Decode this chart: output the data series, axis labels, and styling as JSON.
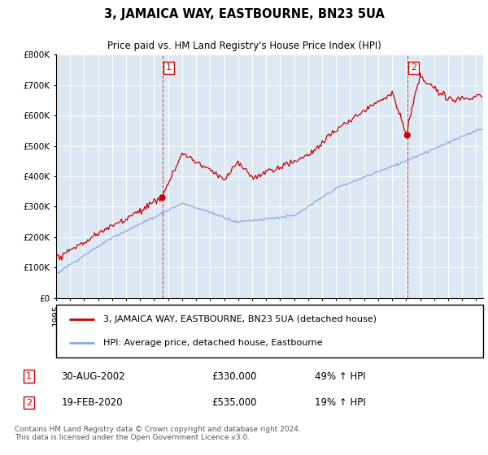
{
  "title": "3, JAMAICA WAY, EASTBOURNE, BN23 5UA",
  "subtitle": "Price paid vs. HM Land Registry's House Price Index (HPI)",
  "bg_color": "#dce9f5",
  "legend_line1": "3, JAMAICA WAY, EASTBOURNE, BN23 5UA (detached house)",
  "legend_line2": "HPI: Average price, detached house, Eastbourne",
  "sale1_date": "30-AUG-2002",
  "sale1_price": 330000,
  "sale1_pct": "49%",
  "sale2_date": "19-FEB-2020",
  "sale2_price": 535000,
  "sale2_pct": "19%",
  "footer": "Contains HM Land Registry data © Crown copyright and database right 2024.\nThis data is licensed under the Open Government Licence v3.0.",
  "red_color": "#cc0000",
  "blue_color": "#88aadd",
  "ylim": [
    0,
    800000
  ],
  "yticks": [
    0,
    100000,
    200000,
    300000,
    400000,
    500000,
    600000,
    700000,
    800000
  ],
  "xlim_start": 1995.0,
  "xlim_end": 2025.5
}
